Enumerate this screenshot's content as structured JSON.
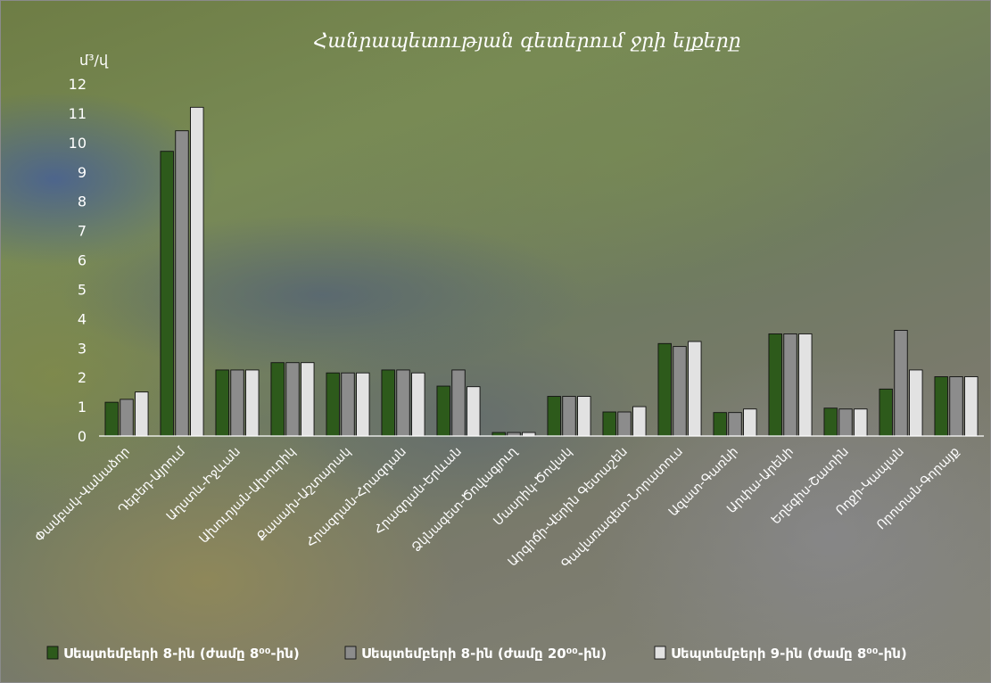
{
  "chart_data": {
    "type": "bar",
    "title": "Հանրապետության գետերում ջրի ելքերը",
    "ylabel": "մ³/վ",
    "ylim": [
      0,
      12
    ],
    "yticks": [
      0,
      1,
      2,
      3,
      4,
      5,
      6,
      7,
      8,
      9,
      10,
      11,
      12
    ],
    "grid": false,
    "legend_position": "bottom",
    "categories": [
      "Փամբակ-Վանաձոր",
      "Դեբեդ-Այրում",
      "Աղստև-Իջևան",
      "Ախուրյան-Ախուրիկ",
      "Քասախ-Աշտարակ",
      "Հրազդան-Հրազդան",
      "Հրազդան-Երևան",
      "Ձկնագետ-Ծովագյուղ",
      "Մասրիկ-Ծովակ",
      "Արգիճի-Վերին Գետաշեն",
      "Գավառագետ-Նորատուս",
      "Ազատ-Գառնի",
      "Արփա-Արենի",
      "Եղեգիս-Շատին",
      "Ողջի-Կապան",
      "Որոտան-Գորայք"
    ],
    "series": [
      {
        "name": "Սեպտեմբերի 8-ին (ժամը 8⁰⁰-ին)",
        "color": "#2d5a1b",
        "values": [
          1.15,
          9.7,
          2.25,
          2.5,
          2.15,
          2.25,
          1.7,
          0.12,
          1.35,
          0.82,
          3.15,
          0.8,
          3.48,
          0.95,
          1.6,
          2.02
        ]
      },
      {
        "name": "Սեպտեմբերի 8-ին (ժամը 20⁰⁰-ին)",
        "color": "#8c8c8c",
        "values": [
          1.25,
          10.4,
          2.25,
          2.5,
          2.15,
          2.25,
          2.25,
          0.12,
          1.35,
          0.82,
          3.05,
          0.8,
          3.48,
          0.92,
          3.6,
          2.02
        ]
      },
      {
        "name": "Սեպտեմբերի 9-ին (ժամը 8⁰⁰-ին)",
        "color": "#e2e2e2",
        "values": [
          1.5,
          11.2,
          2.25,
          2.5,
          2.15,
          2.15,
          1.68,
          0.12,
          1.35,
          1.0,
          3.22,
          0.92,
          3.48,
          0.92,
          2.25,
          2.02
        ]
      }
    ]
  }
}
